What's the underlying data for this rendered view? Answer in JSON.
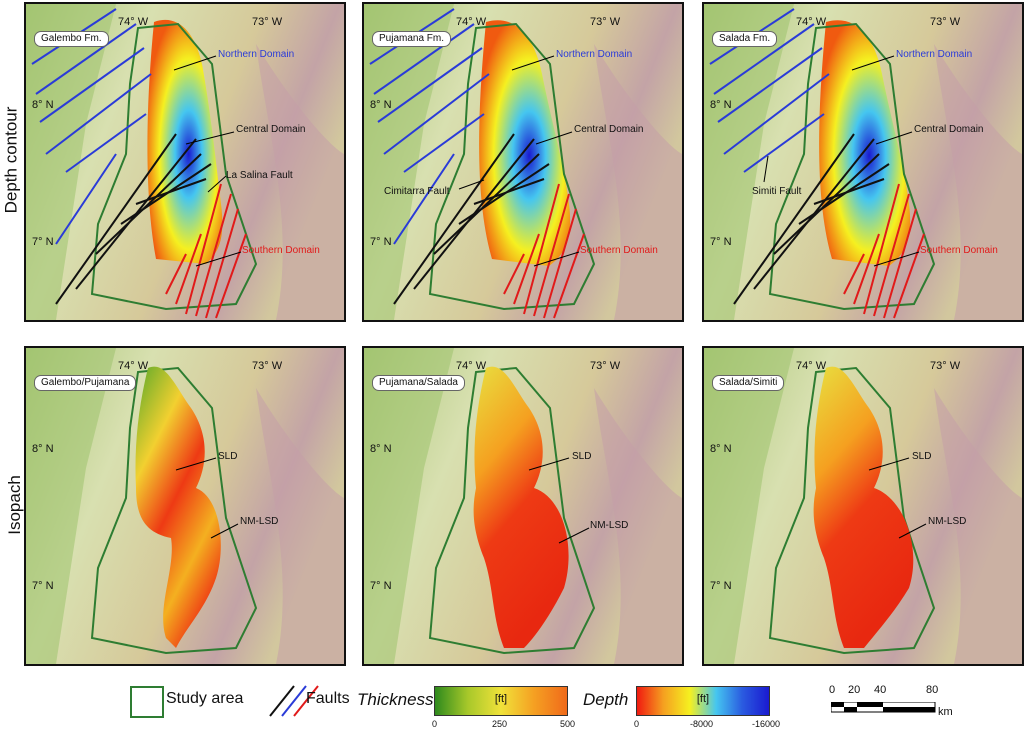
{
  "row_labels": {
    "depth": "Depth contour",
    "isopach": "Isopach"
  },
  "coords": {
    "lon1": "74° W",
    "lon2": "73° W",
    "lat1": "8° N",
    "lat2": "7° N"
  },
  "panels": [
    {
      "name": "Galembo Fm.",
      "domains": {
        "north": "Northern Domain",
        "central": "Central Domain",
        "south": "Southern Domain"
      },
      "fault": "La Salina Fault"
    },
    {
      "name": "Pujamana Fm.",
      "domains": {
        "north": "Northern Domain",
        "central": "Central Domain",
        "south": "Southern Domain"
      },
      "fault": "Cimitarra Fault"
    },
    {
      "name": "Salada Fm.",
      "domains": {
        "north": "Northern Domain",
        "central": "Central Domain",
        "south": "Southern Domain"
      },
      "fault": "Simiti Fault"
    },
    {
      "name": "Galembo/Pujamana",
      "sld": "SLD",
      "nm": "NM-LSD"
    },
    {
      "name": "Pujamana/Salada",
      "sld": "SLD",
      "nm": "NM-LSD"
    },
    {
      "name": "Salada/Simiti",
      "sld": "SLD",
      "nm": "NM-LSD"
    }
  ],
  "legend": {
    "study_area": "Study area",
    "faults": "Faults",
    "thickness": {
      "title": "Thickness",
      "unit": "[ft]",
      "ticks": [
        "0",
        "250",
        "500"
      ],
      "colors": [
        "#2e8a1d",
        "#f0e23a",
        "#f06a1a"
      ]
    },
    "depth": {
      "title": "Depth",
      "unit": "[ft]",
      "ticks": [
        "0",
        "-8000",
        "-16000"
      ],
      "colors": [
        "#f01a10",
        "#f5f020",
        "#45c6f0",
        "#1a1ad0"
      ]
    },
    "scale": {
      "ticks": [
        "0",
        "20",
        "40",
        "80"
      ],
      "unit": "km"
    },
    "colors": {
      "study_area": "#2e7d32",
      "fault_north": "#2a3bd8",
      "fault_central": "#111111",
      "fault_south": "#e11a1a"
    }
  }
}
